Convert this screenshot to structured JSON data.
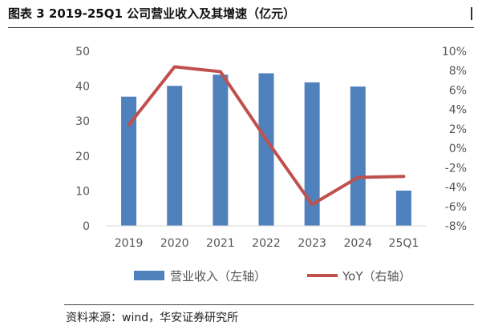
{
  "figure": {
    "title": "图表 3 2019-25Q1 公司营业收入及其增速（亿元）",
    "source": "资料来源：wind，华安证券研究所"
  },
  "colors": {
    "bar": "#4f81bd",
    "line": "#c0504d",
    "axis_text": "#555555",
    "axis_line": "#d9d9d9"
  },
  "chart_data": {
    "type": "bar+line",
    "categories": [
      "2019",
      "2020",
      "2021",
      "2022",
      "2023",
      "2024",
      "25Q1"
    ],
    "series": [
      {
        "name": "营业收入（左轴）",
        "type": "bar",
        "axis": "left",
        "values": [
          37.0,
          40.1,
          43.3,
          43.7,
          41.1,
          39.9,
          10.1
        ]
      },
      {
        "name": "YoY（右轴）",
        "type": "line",
        "axis": "right",
        "values": [
          2.4,
          8.4,
          7.9,
          0.9,
          -5.8,
          -3.0,
          -2.9
        ]
      }
    ],
    "left_axis": {
      "min": 0,
      "max": 50,
      "ticks": [
        "0",
        "10",
        "20",
        "30",
        "40",
        "50"
      ]
    },
    "right_axis": {
      "min": -8,
      "max": 10,
      "ticks": [
        "-8%",
        "-6%",
        "-4%",
        "-2%",
        "0%",
        "2%",
        "4%",
        "6%",
        "8%",
        "10%"
      ]
    },
    "legend": {
      "placement": "bottom"
    },
    "grid": false
  }
}
